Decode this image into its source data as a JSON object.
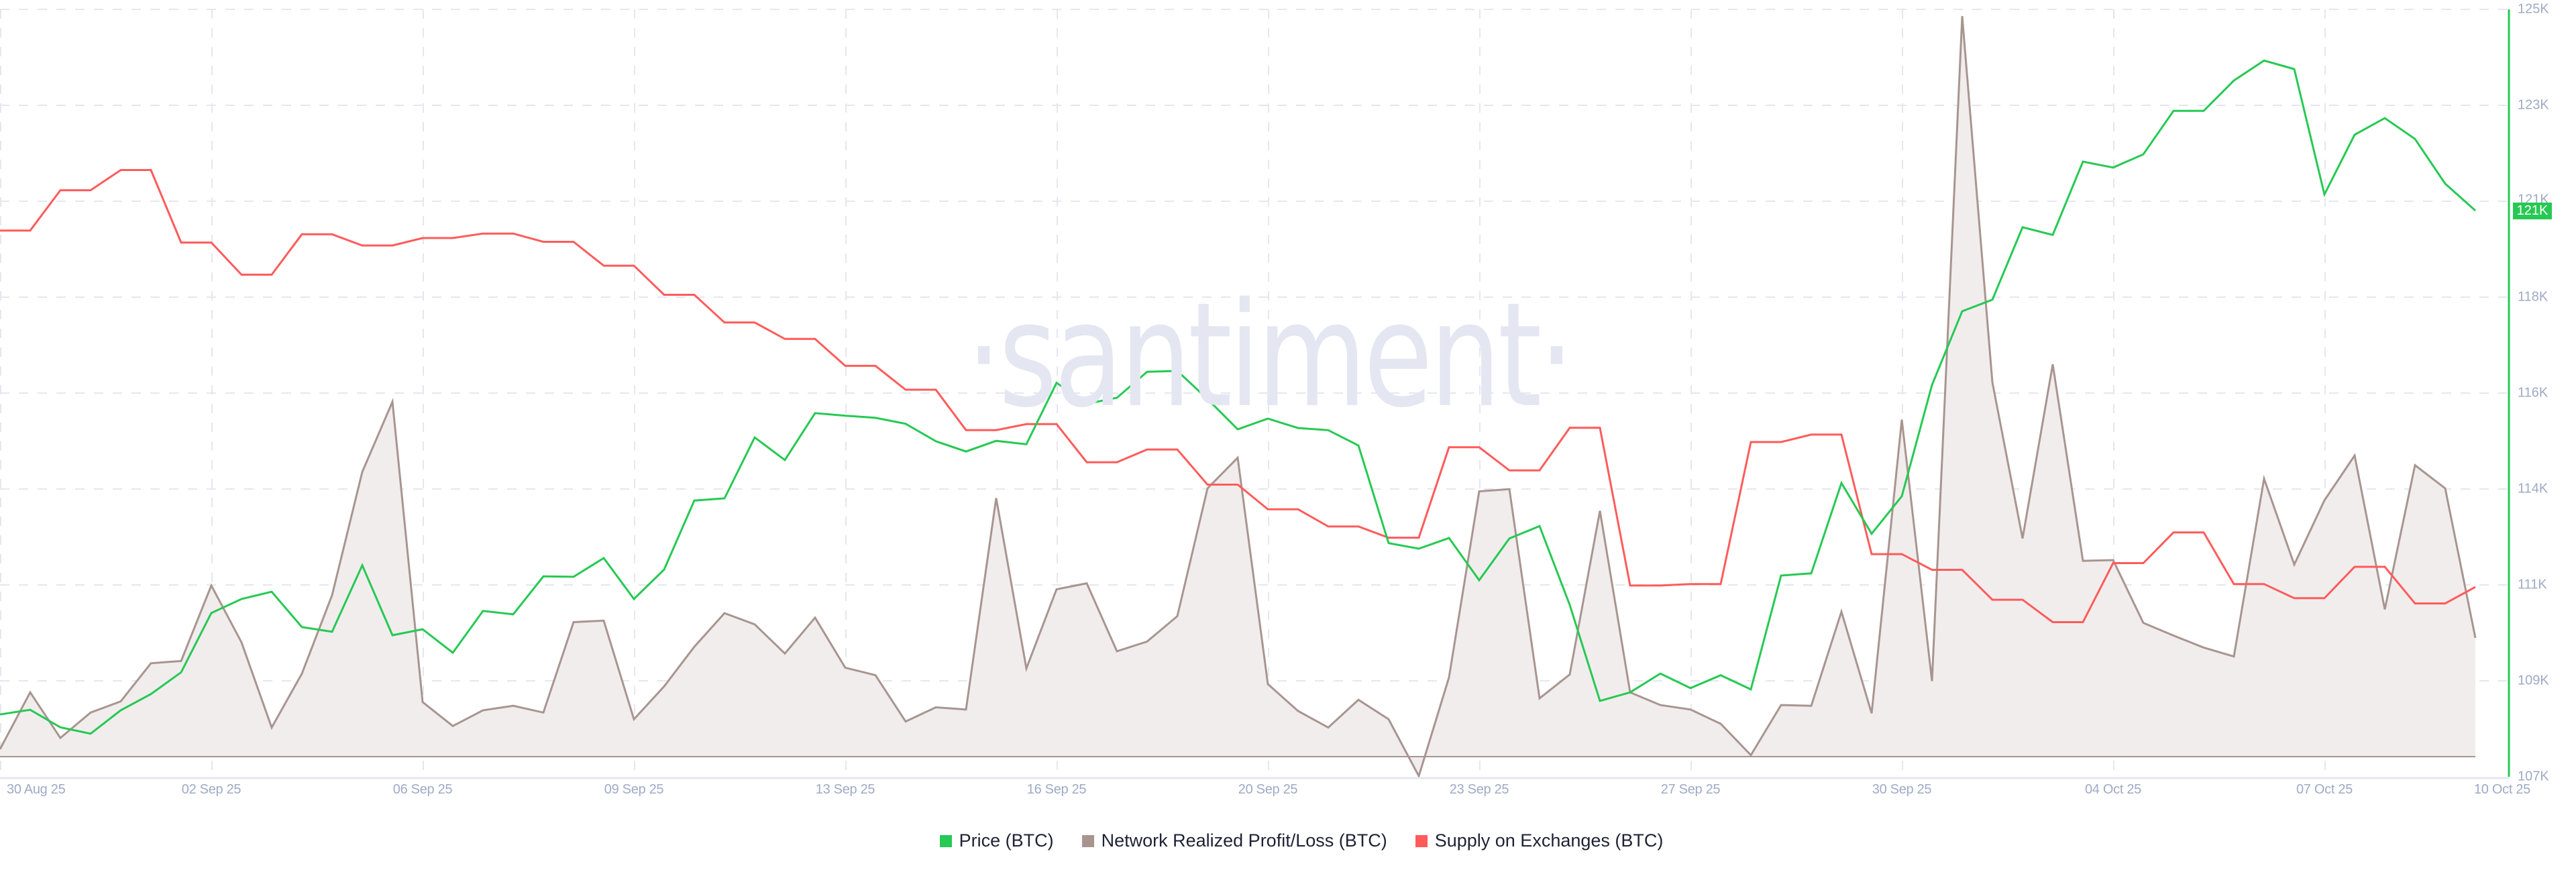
{
  "watermark": "·santiment·",
  "colors": {
    "price": "#26c953",
    "nrpl_line": "#a89590",
    "nrpl_fill": "#f1eded",
    "supply": "#ff5b5b",
    "grid": "#e5e7f0",
    "axis_text": "#9faac4",
    "axis_line": "#e3e7ef",
    "legend_text": "#1e2235"
  },
  "legend": [
    {
      "label": "Price (BTC)",
      "color": "#26c953"
    },
    {
      "label": "Network Realized Profit/Loss (BTC)",
      "color": "#a89590"
    },
    {
      "label": "Supply on Exchanges (BTC)",
      "color": "#ff5b5b"
    }
  ],
  "price_badge": {
    "label": "121K",
    "color": "#26c953"
  },
  "chart_data": {
    "type": "line",
    "title": "",
    "xlabel": "",
    "ylabel": "Price (BTC)",
    "x_tick_labels": [
      "30 Aug 25",
      "02 Sep 25",
      "06 Sep 25",
      "09 Sep 25",
      "13 Sep 25",
      "16 Sep 25",
      "20 Sep 25",
      "23 Sep 25",
      "27 Sep 25",
      "30 Sep 25",
      "04 Oct 25",
      "07 Oct 25",
      "10 Oct 25"
    ],
    "y_tick_labels": [
      "125K",
      "123K",
      "121K",
      "118K",
      "116K",
      "114K",
      "111K",
      "109K",
      "107K"
    ],
    "ylim": [
      107000,
      125000
    ],
    "grid": true,
    "legend_position": "bottom",
    "x_range": [
      "30 Aug 25",
      "10 Oct 25"
    ],
    "points": 83,
    "series": [
      {
        "name": "Price (BTC)",
        "axis": "right",
        "unit": "USD (thousands)",
        "values": [
          108.46,
          108.57,
          108.16,
          108.01,
          108.56,
          108.94,
          109.45,
          110.84,
          111.17,
          111.34,
          110.51,
          110.4,
          111.96,
          110.32,
          110.46,
          109.91,
          110.89,
          110.81,
          111.7,
          111.69,
          112.13,
          111.17,
          111.86,
          113.48,
          113.53,
          114.96,
          114.43,
          115.53,
          115.47,
          115.42,
          115.28,
          114.87,
          114.63,
          114.88,
          114.8,
          116.24,
          115.75,
          115.89,
          116.5,
          116.52,
          115.86,
          115.15,
          115.4,
          115.18,
          115.13,
          114.77,
          112.48,
          112.35,
          112.6,
          111.61,
          112.59,
          112.88,
          111.03,
          108.78,
          108.98,
          109.42,
          109.08,
          109.38,
          109.05,
          111.72,
          111.77,
          113.89,
          112.7,
          113.58,
          116.19,
          117.92,
          118.19,
          119.89,
          119.71,
          121.43,
          121.29,
          121.6,
          122.62,
          122.62,
          123.33,
          123.8,
          123.6,
          120.66,
          122.06,
          122.45,
          121.96,
          120.91,
          120.28
        ]
      },
      {
        "name": "Network Realized Profit/Loss (BTC)",
        "axis": "hidden",
        "unit": "relative (0-100 of plot height)",
        "values": [
          1.0,
          8.6,
          2.5,
          5.9,
          7.4,
          12.5,
          12.8,
          22.9,
          15.3,
          3.9,
          11.1,
          21.6,
          38.1,
          47.5,
          7.3,
          4.1,
          6.2,
          6.8,
          5.9,
          18.0,
          18.2,
          5.0,
          9.4,
          14.7,
          19.2,
          17.7,
          13.8,
          18.6,
          11.9,
          10.9,
          4.7,
          6.6,
          6.3,
          34.6,
          11.8,
          22.4,
          23.2,
          14.1,
          15.4,
          18.8,
          35.9,
          40.0,
          9.7,
          6.1,
          3.9,
          7.6,
          5.0,
          -2.6,
          10.6,
          35.5,
          35.8,
          7.8,
          11.0,
          32.9,
          8.6,
          6.9,
          6.3,
          4.4,
          0.2,
          6.9,
          6.8,
          19.4,
          5.8,
          45.1,
          10.1,
          99.1,
          50.1,
          29.2,
          52.5,
          26.2,
          26.3,
          17.9,
          16.2,
          14.6,
          13.4,
          37.2,
          25.7,
          34.3,
          40.3,
          19.7,
          39.0,
          35.9,
          15.9
        ]
      },
      {
        "name": "Supply on Exchanges (BTC)",
        "axis": "hidden",
        "unit": "relative (0-100 of plot height)",
        "values": [
          70.4,
          70.4,
          75.8,
          75.8,
          78.5,
          78.5,
          68.8,
          68.8,
          64.5,
          64.5,
          69.9,
          69.9,
          68.4,
          68.4,
          69.4,
          69.4,
          70.0,
          70.0,
          68.9,
          68.9,
          65.7,
          65.7,
          61.8,
          61.8,
          58.1,
          58.1,
          55.9,
          55.9,
          52.3,
          52.3,
          49.1,
          49.1,
          43.7,
          43.7,
          44.5,
          44.5,
          39.4,
          39.4,
          41.1,
          41.1,
          36.4,
          36.4,
          33.1,
          33.1,
          30.8,
          30.8,
          29.3,
          29.3,
          41.4,
          41.4,
          38.3,
          38.3,
          44.0,
          44.0,
          22.9,
          22.9,
          23.1,
          23.1,
          42.1,
          42.1,
          43.1,
          43.1,
          27.1,
          27.1,
          25.0,
          25.0,
          21.0,
          21.0,
          18.0,
          18.0,
          25.9,
          25.9,
          30.0,
          30.0,
          23.1,
          23.1,
          21.2,
          21.2,
          25.4,
          25.4,
          20.5,
          20.5,
          22.7
        ]
      }
    ]
  }
}
